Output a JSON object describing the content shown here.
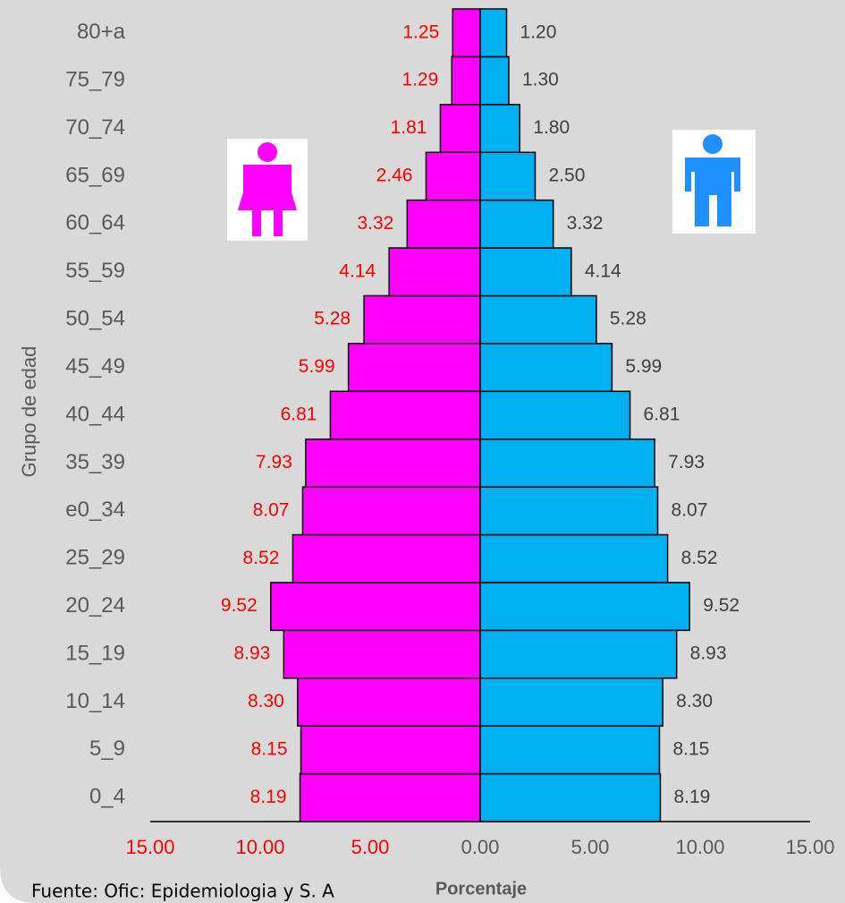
{
  "chart_data": {
    "type": "pyramid",
    "x_label": "Porcentaje",
    "y_label": "Grupo de edad",
    "source": "Fuente: Ofic: Epidemiologia y S. A",
    "categories": [
      "0_4",
      "5_9",
      "10_14",
      "15_19",
      "20_24",
      "25_29",
      "e0_34",
      "35_39",
      "40_44",
      "45_49",
      "50_54",
      "55_59",
      "60_64",
      "65_69",
      "70_74",
      "75_79",
      "80+a"
    ],
    "series": [
      {
        "color": "#ff00ff",
        "label_color": "#ff0000",
        "values": [
          8.19,
          8.15,
          8.3,
          8.93,
          9.52,
          8.52,
          8.07,
          7.93,
          6.81,
          5.99,
          5.28,
          4.14,
          3.32,
          2.46,
          1.81,
          1.29,
          1.25
        ],
        "value_labels": [
          "8.19",
          "8.15",
          "8.30",
          "8.93",
          "9.52",
          "8.52",
          "8.07",
          "7.93",
          "6.81",
          "5.99",
          "5.28",
          "4.14",
          "3.32",
          "2.46",
          "1.81",
          "1.29",
          "1.25"
        ]
      },
      {
        "color": "#00b0f0",
        "label_color": "#404040",
        "values": [
          8.19,
          8.15,
          8.3,
          8.93,
          9.52,
          8.52,
          8.07,
          7.93,
          6.81,
          5.99,
          5.28,
          4.14,
          3.32,
          2.5,
          1.8,
          1.3,
          1.2
        ],
        "value_labels": [
          "8.19",
          "8.15",
          "8.30",
          "8.93",
          "9.52",
          "8.52",
          "8.07",
          "7.93",
          "6.81",
          "5.99",
          "5.28",
          "4.14",
          "3.32",
          "2.50",
          "1.80",
          "1.30",
          "1.20"
        ]
      }
    ],
    "xlim": [
      -15,
      15
    ],
    "xticks": [
      {
        "value": -15,
        "label": "15.00"
      },
      {
        "value": -10,
        "label": "10.00"
      },
      {
        "value": -5,
        "label": "5.00"
      },
      {
        "value": 0,
        "label": "0.00"
      },
      {
        "value": 5,
        "label": "5.00"
      },
      {
        "value": 10,
        "label": "10.00"
      },
      {
        "value": 15,
        "label": "15.00"
      }
    ]
  }
}
